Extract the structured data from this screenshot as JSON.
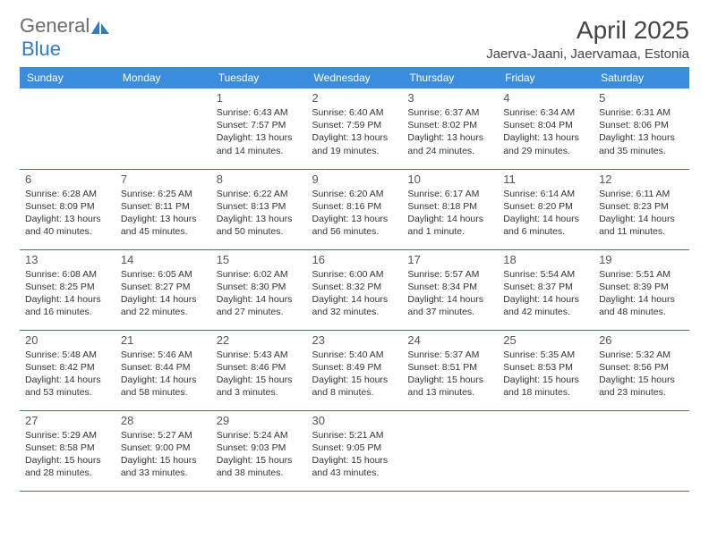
{
  "brand": {
    "part1": "General",
    "part2": "Blue"
  },
  "title": "April 2025",
  "location": "Jaerva-Jaani, Jaervamaa, Estonia",
  "dayHeaders": [
    "Sunday",
    "Monday",
    "Tuesday",
    "Wednesday",
    "Thursday",
    "Friday",
    "Saturday"
  ],
  "colors": {
    "headerBg": "#3a8dde",
    "headerText": "#ffffff",
    "rowBorder": "#3a6fa5",
    "brandGray": "#6b6b6b",
    "brandBlue": "#2f7cc4",
    "textDark": "#333333",
    "titleColor": "#444444",
    "pageBg": "#ffffff"
  },
  "typography": {
    "monthTitleSize": 28,
    "locationSize": 15,
    "dayHeaderSize": 12,
    "dayNumSize": 13,
    "infoSize": 10.5
  },
  "startOffset": 2,
  "days": [
    {
      "n": "1",
      "sunrise": "6:43 AM",
      "sunset": "7:57 PM",
      "daylight": "13 hours and 14 minutes."
    },
    {
      "n": "2",
      "sunrise": "6:40 AM",
      "sunset": "7:59 PM",
      "daylight": "13 hours and 19 minutes."
    },
    {
      "n": "3",
      "sunrise": "6:37 AM",
      "sunset": "8:02 PM",
      "daylight": "13 hours and 24 minutes."
    },
    {
      "n": "4",
      "sunrise": "6:34 AM",
      "sunset": "8:04 PM",
      "daylight": "13 hours and 29 minutes."
    },
    {
      "n": "5",
      "sunrise": "6:31 AM",
      "sunset": "8:06 PM",
      "daylight": "13 hours and 35 minutes."
    },
    {
      "n": "6",
      "sunrise": "6:28 AM",
      "sunset": "8:09 PM",
      "daylight": "13 hours and 40 minutes."
    },
    {
      "n": "7",
      "sunrise": "6:25 AM",
      "sunset": "8:11 PM",
      "daylight": "13 hours and 45 minutes."
    },
    {
      "n": "8",
      "sunrise": "6:22 AM",
      "sunset": "8:13 PM",
      "daylight": "13 hours and 50 minutes."
    },
    {
      "n": "9",
      "sunrise": "6:20 AM",
      "sunset": "8:16 PM",
      "daylight": "13 hours and 56 minutes."
    },
    {
      "n": "10",
      "sunrise": "6:17 AM",
      "sunset": "8:18 PM",
      "daylight": "14 hours and 1 minute."
    },
    {
      "n": "11",
      "sunrise": "6:14 AM",
      "sunset": "8:20 PM",
      "daylight": "14 hours and 6 minutes."
    },
    {
      "n": "12",
      "sunrise": "6:11 AM",
      "sunset": "8:23 PM",
      "daylight": "14 hours and 11 minutes."
    },
    {
      "n": "13",
      "sunrise": "6:08 AM",
      "sunset": "8:25 PM",
      "daylight": "14 hours and 16 minutes."
    },
    {
      "n": "14",
      "sunrise": "6:05 AM",
      "sunset": "8:27 PM",
      "daylight": "14 hours and 22 minutes."
    },
    {
      "n": "15",
      "sunrise": "6:02 AM",
      "sunset": "8:30 PM",
      "daylight": "14 hours and 27 minutes."
    },
    {
      "n": "16",
      "sunrise": "6:00 AM",
      "sunset": "8:32 PM",
      "daylight": "14 hours and 32 minutes."
    },
    {
      "n": "17",
      "sunrise": "5:57 AM",
      "sunset": "8:34 PM",
      "daylight": "14 hours and 37 minutes."
    },
    {
      "n": "18",
      "sunrise": "5:54 AM",
      "sunset": "8:37 PM",
      "daylight": "14 hours and 42 minutes."
    },
    {
      "n": "19",
      "sunrise": "5:51 AM",
      "sunset": "8:39 PM",
      "daylight": "14 hours and 48 minutes."
    },
    {
      "n": "20",
      "sunrise": "5:48 AM",
      "sunset": "8:42 PM",
      "daylight": "14 hours and 53 minutes."
    },
    {
      "n": "21",
      "sunrise": "5:46 AM",
      "sunset": "8:44 PM",
      "daylight": "14 hours and 58 minutes."
    },
    {
      "n": "22",
      "sunrise": "5:43 AM",
      "sunset": "8:46 PM",
      "daylight": "15 hours and 3 minutes."
    },
    {
      "n": "23",
      "sunrise": "5:40 AM",
      "sunset": "8:49 PM",
      "daylight": "15 hours and 8 minutes."
    },
    {
      "n": "24",
      "sunrise": "5:37 AM",
      "sunset": "8:51 PM",
      "daylight": "15 hours and 13 minutes."
    },
    {
      "n": "25",
      "sunrise": "5:35 AM",
      "sunset": "8:53 PM",
      "daylight": "15 hours and 18 minutes."
    },
    {
      "n": "26",
      "sunrise": "5:32 AM",
      "sunset": "8:56 PM",
      "daylight": "15 hours and 23 minutes."
    },
    {
      "n": "27",
      "sunrise": "5:29 AM",
      "sunset": "8:58 PM",
      "daylight": "15 hours and 28 minutes."
    },
    {
      "n": "28",
      "sunrise": "5:27 AM",
      "sunset": "9:00 PM",
      "daylight": "15 hours and 33 minutes."
    },
    {
      "n": "29",
      "sunrise": "5:24 AM",
      "sunset": "9:03 PM",
      "daylight": "15 hours and 38 minutes."
    },
    {
      "n": "30",
      "sunrise": "5:21 AM",
      "sunset": "9:05 PM",
      "daylight": "15 hours and 43 minutes."
    }
  ],
  "labels": {
    "sunrise": "Sunrise:",
    "sunset": "Sunset:",
    "daylight": "Daylight:"
  }
}
